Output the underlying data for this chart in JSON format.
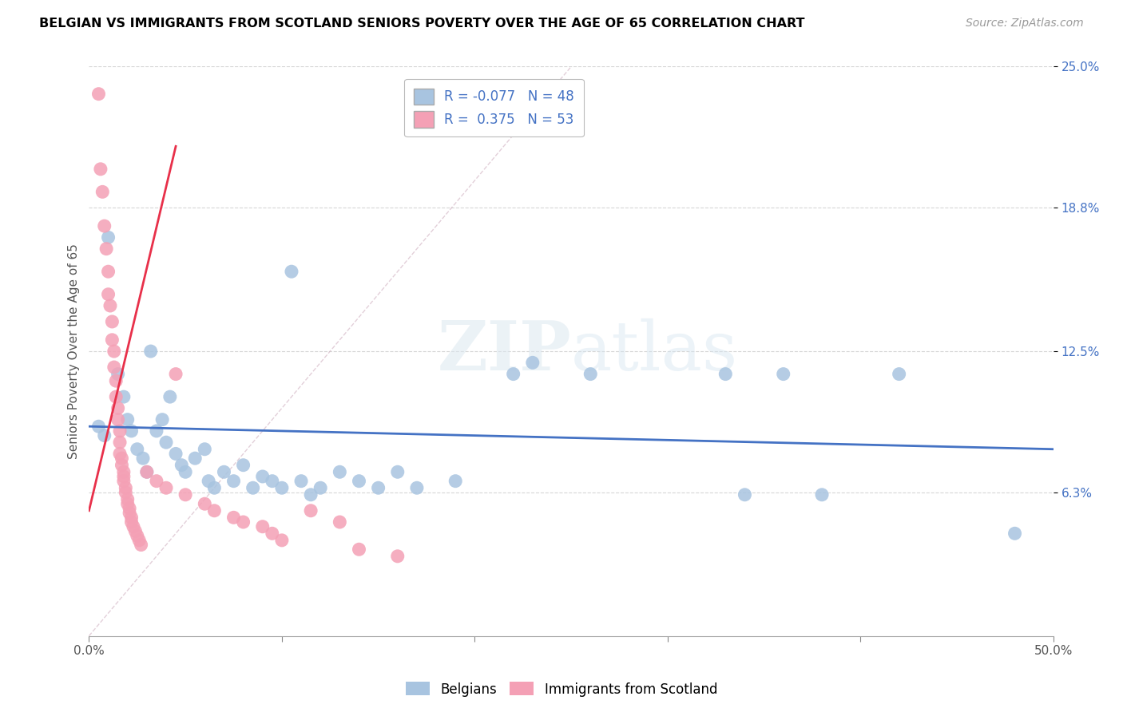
{
  "title": "BELGIAN VS IMMIGRANTS FROM SCOTLAND SENIORS POVERTY OVER THE AGE OF 65 CORRELATION CHART",
  "source": "Source: ZipAtlas.com",
  "ylabel": "Seniors Poverty Over the Age of 65",
  "xlim": [
    0.0,
    0.5
  ],
  "ylim": [
    0.0,
    0.25
  ],
  "ytick_right_labels": [
    "25.0%",
    "18.8%",
    "12.5%",
    "6.3%"
  ],
  "ytick_right_values": [
    0.25,
    0.188,
    0.125,
    0.063
  ],
  "legend_r_blue": "-0.077",
  "legend_n_blue": "48",
  "legend_r_pink": "0.375",
  "legend_n_pink": "53",
  "blue_color": "#a8c4e0",
  "pink_color": "#f4a0b5",
  "line_blue_color": "#4472c4",
  "line_pink_color": "#e8304a",
  "watermark": "ZIPatlas",
  "blue_scatter": [
    [
      0.005,
      0.092
    ],
    [
      0.008,
      0.088
    ],
    [
      0.01,
      0.175
    ],
    [
      0.015,
      0.115
    ],
    [
      0.018,
      0.105
    ],
    [
      0.02,
      0.095
    ],
    [
      0.022,
      0.09
    ],
    [
      0.025,
      0.082
    ],
    [
      0.028,
      0.078
    ],
    [
      0.03,
      0.072
    ],
    [
      0.032,
      0.125
    ],
    [
      0.035,
      0.09
    ],
    [
      0.038,
      0.095
    ],
    [
      0.04,
      0.085
    ],
    [
      0.042,
      0.105
    ],
    [
      0.045,
      0.08
    ],
    [
      0.048,
      0.075
    ],
    [
      0.05,
      0.072
    ],
    [
      0.055,
      0.078
    ],
    [
      0.06,
      0.082
    ],
    [
      0.062,
      0.068
    ],
    [
      0.065,
      0.065
    ],
    [
      0.07,
      0.072
    ],
    [
      0.075,
      0.068
    ],
    [
      0.08,
      0.075
    ],
    [
      0.085,
      0.065
    ],
    [
      0.09,
      0.07
    ],
    [
      0.095,
      0.068
    ],
    [
      0.1,
      0.065
    ],
    [
      0.105,
      0.16
    ],
    [
      0.11,
      0.068
    ],
    [
      0.115,
      0.062
    ],
    [
      0.12,
      0.065
    ],
    [
      0.13,
      0.072
    ],
    [
      0.14,
      0.068
    ],
    [
      0.15,
      0.065
    ],
    [
      0.16,
      0.072
    ],
    [
      0.17,
      0.065
    ],
    [
      0.19,
      0.068
    ],
    [
      0.22,
      0.115
    ],
    [
      0.23,
      0.12
    ],
    [
      0.26,
      0.115
    ],
    [
      0.33,
      0.115
    ],
    [
      0.34,
      0.062
    ],
    [
      0.36,
      0.115
    ],
    [
      0.38,
      0.062
    ],
    [
      0.42,
      0.115
    ],
    [
      0.48,
      0.045
    ]
  ],
  "pink_scatter": [
    [
      0.005,
      0.238
    ],
    [
      0.006,
      0.205
    ],
    [
      0.007,
      0.195
    ],
    [
      0.008,
      0.18
    ],
    [
      0.009,
      0.17
    ],
    [
      0.01,
      0.16
    ],
    [
      0.01,
      0.15
    ],
    [
      0.011,
      0.145
    ],
    [
      0.012,
      0.138
    ],
    [
      0.012,
      0.13
    ],
    [
      0.013,
      0.125
    ],
    [
      0.013,
      0.118
    ],
    [
      0.014,
      0.112
    ],
    [
      0.014,
      0.105
    ],
    [
      0.015,
      0.1
    ],
    [
      0.015,
      0.095
    ],
    [
      0.016,
      0.09
    ],
    [
      0.016,
      0.085
    ],
    [
      0.016,
      0.08
    ],
    [
      0.017,
      0.078
    ],
    [
      0.017,
      0.075
    ],
    [
      0.018,
      0.072
    ],
    [
      0.018,
      0.07
    ],
    [
      0.018,
      0.068
    ],
    [
      0.019,
      0.065
    ],
    [
      0.019,
      0.063
    ],
    [
      0.02,
      0.06
    ],
    [
      0.02,
      0.058
    ],
    [
      0.021,
      0.056
    ],
    [
      0.021,
      0.054
    ],
    [
      0.022,
      0.052
    ],
    [
      0.022,
      0.05
    ],
    [
      0.023,
      0.048
    ],
    [
      0.024,
      0.046
    ],
    [
      0.025,
      0.044
    ],
    [
      0.026,
      0.042
    ],
    [
      0.027,
      0.04
    ],
    [
      0.03,
      0.072
    ],
    [
      0.035,
      0.068
    ],
    [
      0.04,
      0.065
    ],
    [
      0.045,
      0.115
    ],
    [
      0.05,
      0.062
    ],
    [
      0.06,
      0.058
    ],
    [
      0.065,
      0.055
    ],
    [
      0.075,
      0.052
    ],
    [
      0.08,
      0.05
    ],
    [
      0.09,
      0.048
    ],
    [
      0.095,
      0.045
    ],
    [
      0.1,
      0.042
    ],
    [
      0.115,
      0.055
    ],
    [
      0.13,
      0.05
    ],
    [
      0.14,
      0.038
    ],
    [
      0.16,
      0.035
    ]
  ]
}
